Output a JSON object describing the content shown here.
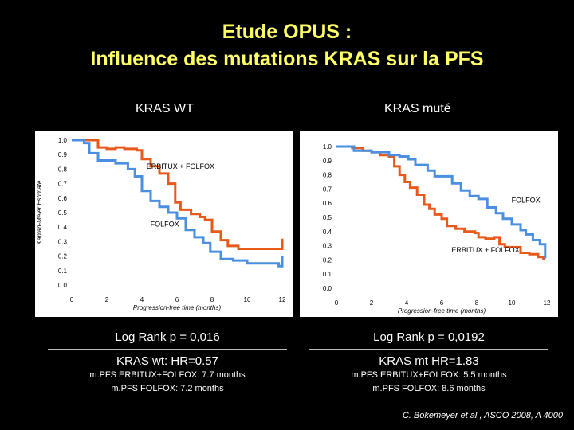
{
  "header": {
    "title_line1": "Etude OPUS :",
    "title_line2": "Influence des mutations KRAS sur la PFS"
  },
  "colors": {
    "erbitux": "#e8591a",
    "folfox": "#4a8fe0",
    "title": "#ffff66"
  },
  "chart_data": [
    {
      "type": "line",
      "title": "KRAS WT",
      "xlabel": "Progression-free time (months)",
      "ylabel": "Kaplan-Meier Estimate",
      "xlim": [
        0,
        12
      ],
      "ylim": [
        0,
        1
      ],
      "x_ticks": [
        "0",
        "2",
        "4",
        "6",
        "8",
        "10",
        "12"
      ],
      "y_ticks": [
        "0.0",
        "0.1",
        "0.2",
        "0.3",
        "0.4",
        "0.5",
        "0.6",
        "0.7",
        "0.8",
        "0.9",
        "1.0"
      ],
      "annotations": [
        {
          "text": "ERBITUX + FOLFOX",
          "x": 6.2,
          "y": 0.82
        },
        {
          "text": "FOLFOX",
          "x": 5.3,
          "y": 0.42
        }
      ],
      "series": [
        {
          "name": "ERBITUX + FOLFOX",
          "color": "#e8591a",
          "points": [
            [
              0,
              1.0
            ],
            [
              1.2,
              1.0
            ],
            [
              1.5,
              0.95
            ],
            [
              2.0,
              0.94
            ],
            [
              2.5,
              0.95
            ],
            [
              3.0,
              0.94
            ],
            [
              3.7,
              0.93
            ],
            [
              4.0,
              0.87
            ],
            [
              4.5,
              0.82
            ],
            [
              5.0,
              0.77
            ],
            [
              5.5,
              0.7
            ],
            [
              5.9,
              0.57
            ],
            [
              6.2,
              0.52
            ],
            [
              6.8,
              0.49
            ],
            [
              7.3,
              0.47
            ],
            [
              7.6,
              0.45
            ],
            [
              8.0,
              0.37
            ],
            [
              8.5,
              0.31
            ],
            [
              8.9,
              0.27
            ],
            [
              9.5,
              0.25
            ],
            [
              10.5,
              0.25
            ],
            [
              11.8,
              0.25
            ],
            [
              12.0,
              0.32
            ]
          ]
        },
        {
          "name": "FOLFOX",
          "color": "#4a8fe0",
          "points": [
            [
              0,
              1.0
            ],
            [
              0.7,
              0.98
            ],
            [
              1.0,
              0.91
            ],
            [
              1.5,
              0.86
            ],
            [
              2.5,
              0.84
            ],
            [
              3.2,
              0.8
            ],
            [
              3.6,
              0.75
            ],
            [
              4.0,
              0.65
            ],
            [
              4.5,
              0.58
            ],
            [
              5.0,
              0.54
            ],
            [
              5.5,
              0.5
            ],
            [
              6.0,
              0.46
            ],
            [
              6.5,
              0.38
            ],
            [
              7.0,
              0.33
            ],
            [
              7.5,
              0.29
            ],
            [
              7.9,
              0.23
            ],
            [
              8.5,
              0.18
            ],
            [
              9.2,
              0.17
            ],
            [
              10.0,
              0.15
            ],
            [
              11.0,
              0.15
            ],
            [
              11.8,
              0.13
            ],
            [
              12.0,
              0.2
            ]
          ]
        }
      ]
    },
    {
      "type": "line",
      "title": "KRAS muté",
      "xlabel": "Progression-free time (months)",
      "ylabel": "",
      "xlim": [
        0,
        12
      ],
      "ylim": [
        0,
        1
      ],
      "x_ticks": [
        "0",
        "2",
        "4",
        "6",
        "8",
        "10",
        "12"
      ],
      "y_ticks": [
        "0.0",
        "0.1",
        "0.2",
        "0.3",
        "0.4",
        "0.5",
        "0.6",
        "0.7",
        "0.8",
        "0.9",
        "1.0"
      ],
      "annotations": [
        {
          "text": "FOLFOX",
          "x": 10.8,
          "y": 0.62
        },
        {
          "text": "ERBITUX + FOLFOX",
          "x": 8.5,
          "y": 0.27
        }
      ],
      "series": [
        {
          "name": "ERBITUX + FOLFOX",
          "color": "#e8591a",
          "points": [
            [
              0,
              1.0
            ],
            [
              0.9,
              0.99
            ],
            [
              1.5,
              0.97
            ],
            [
              2.0,
              0.96
            ],
            [
              2.5,
              0.94
            ],
            [
              3.0,
              0.93
            ],
            [
              3.3,
              0.86
            ],
            [
              3.6,
              0.8
            ],
            [
              3.9,
              0.75
            ],
            [
              4.2,
              0.71
            ],
            [
              4.6,
              0.66
            ],
            [
              5.0,
              0.59
            ],
            [
              5.3,
              0.56
            ],
            [
              5.6,
              0.52
            ],
            [
              6.0,
              0.49
            ],
            [
              6.3,
              0.44
            ],
            [
              6.8,
              0.42
            ],
            [
              7.3,
              0.4
            ],
            [
              7.9,
              0.39
            ],
            [
              8.1,
              0.36
            ],
            [
              8.5,
              0.35
            ],
            [
              9.0,
              0.36
            ],
            [
              9.3,
              0.31
            ],
            [
              9.6,
              0.29
            ],
            [
              10.0,
              0.29
            ],
            [
              10.5,
              0.25
            ],
            [
              11.0,
              0.24
            ],
            [
              11.5,
              0.22
            ],
            [
              11.8,
              0.2
            ]
          ]
        },
        {
          "name": "FOLFOX",
          "color": "#4a8fe0",
          "points": [
            [
              0,
              1.0
            ],
            [
              1.0,
              0.97
            ],
            [
              2.0,
              0.96
            ],
            [
              3.0,
              0.94
            ],
            [
              3.6,
              0.93
            ],
            [
              4.1,
              0.91
            ],
            [
              4.5,
              0.87
            ],
            [
              5.2,
              0.83
            ],
            [
              5.6,
              0.79
            ],
            [
              6.1,
              0.79
            ],
            [
              6.6,
              0.74
            ],
            [
              7.1,
              0.69
            ],
            [
              7.6,
              0.65
            ],
            [
              8.1,
              0.63
            ],
            [
              8.6,
              0.57
            ],
            [
              9.1,
              0.53
            ],
            [
              9.5,
              0.49
            ],
            [
              10.0,
              0.45
            ],
            [
              10.5,
              0.41
            ],
            [
              10.8,
              0.38
            ],
            [
              11.2,
              0.34
            ],
            [
              11.6,
              0.31
            ],
            [
              11.9,
              0.21
            ]
          ]
        }
      ]
    }
  ],
  "stats": {
    "left": {
      "logrank": "Log Rank p = 0,016",
      "hr": "KRAS wt: HR=0.57",
      "mpfs1": "m.PFS ERBITUX+FOLFOX: 7.7 months",
      "mpfs2": "m.PFS FOLFOX: 7.2 months"
    },
    "right": {
      "logrank": "Log Rank p = 0,0192",
      "hr": "KRAS mt HR=1.83",
      "mpfs1": "m.PFS ERBITUX+FOLFOX: 5.5 months",
      "mpfs2": "m.PFS FOLFOX: 8.6 months"
    }
  },
  "footer": {
    "citation": "C. Bokemeyer et al., ASCO 2008, A 4000"
  }
}
